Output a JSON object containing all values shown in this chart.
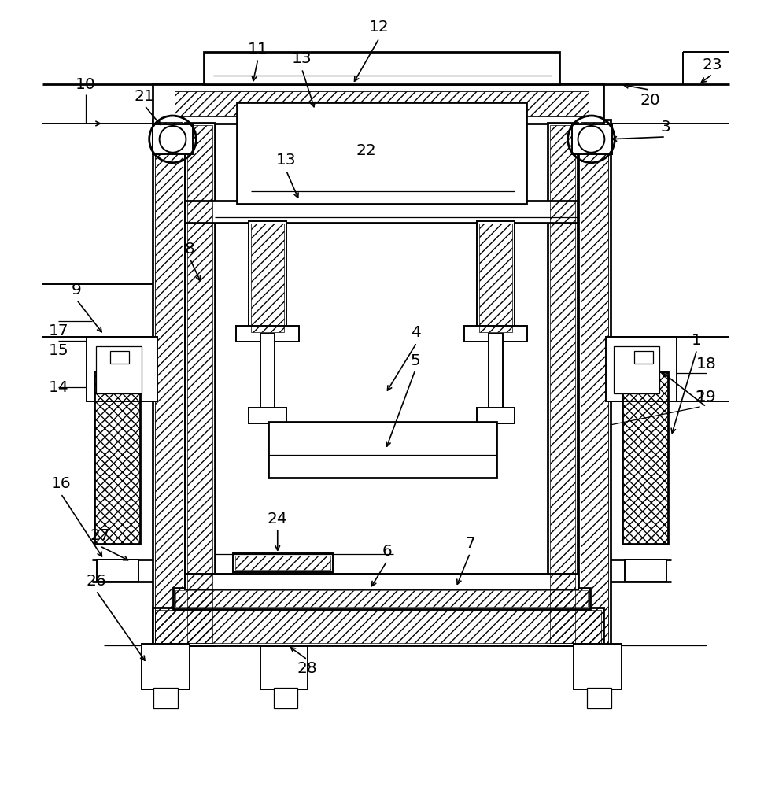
{
  "background": "#ffffff",
  "fig_width": 9.71,
  "fig_height": 10.0,
  "lw_thin": 0.8,
  "lw_med": 1.2,
  "lw_thick": 1.8
}
